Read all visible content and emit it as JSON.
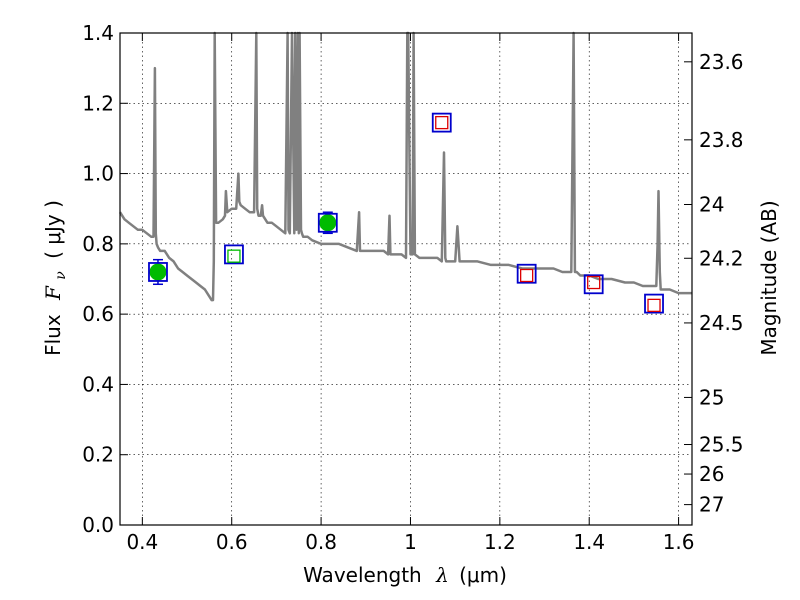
{
  "chart_data": {
    "type": "scatter",
    "xlabel": "Wavelength",
    "xlabel_symbol": "λ",
    "xlabel_unit": "(μm)",
    "ylabel": "Flux",
    "ylabel_symbol": "F",
    "ylabel_subscript": "ν",
    "ylabel_unit": "( μJy )",
    "y2label": "Magnitude (AB)",
    "xlim": [
      0.35,
      1.63
    ],
    "ylim": [
      0.0,
      1.4
    ],
    "grid": true,
    "x_ticks": [
      0.4,
      0.6,
      0.8,
      1.0,
      1.2,
      1.4,
      1.6
    ],
    "x_tick_labels": [
      "0.4",
      "0.6",
      "0.8",
      "1",
      "1.2",
      "1.4",
      "1.6"
    ],
    "y_ticks": [
      0.0,
      0.2,
      0.4,
      0.6,
      0.8,
      1.0,
      1.2,
      1.4
    ],
    "y_tick_labels": [
      "0.0",
      "0.2",
      "0.4",
      "0.6",
      "0.8",
      "1.0",
      "1.2",
      "1.4"
    ],
    "y2_ticks": [
      {
        "label": "23.6",
        "flux": 1.318
      },
      {
        "label": "23.8",
        "flux": 1.096
      },
      {
        "label": "24",
        "flux": 0.912
      },
      {
        "label": "24.2",
        "flux": 0.759
      },
      {
        "label": "24.5",
        "flux": 0.575
      },
      {
        "label": "25",
        "flux": 0.363
      },
      {
        "label": "25.5",
        "flux": 0.229
      },
      {
        "label": "26",
        "flux": 0.145
      },
      {
        "label": "27",
        "flux": 0.058
      }
    ],
    "series": [
      {
        "type": "line",
        "color": "#808080",
        "x": [
          0.35,
          0.36,
          0.37,
          0.38,
          0.39,
          0.4,
          0.41,
          0.42,
          0.425,
          0.428,
          0.43,
          0.432,
          0.435,
          0.44,
          0.45,
          0.46,
          0.47,
          0.48,
          0.49,
          0.5,
          0.51,
          0.52,
          0.53,
          0.54,
          0.55,
          0.555,
          0.558,
          0.56,
          0.562,
          0.565,
          0.57,
          0.58,
          0.585,
          0.587,
          0.59,
          0.6,
          0.61,
          0.615,
          0.617,
          0.62,
          0.63,
          0.64,
          0.65,
          0.655,
          0.657,
          0.66,
          0.665,
          0.668,
          0.67,
          0.68,
          0.69,
          0.7,
          0.72,
          0.725,
          0.727,
          0.73,
          0.735,
          0.74,
          0.742,
          0.745,
          0.748,
          0.75,
          0.752,
          0.755,
          0.757,
          0.76,
          0.77,
          0.78,
          0.8,
          0.82,
          0.84,
          0.86,
          0.88,
          0.885,
          0.887,
          0.89,
          0.9,
          0.92,
          0.94,
          0.95,
          0.953,
          0.955,
          0.96,
          0.97,
          0.98,
          0.99,
          0.993,
          0.995,
          1.0,
          1.005,
          1.007,
          1.01,
          1.02,
          1.03,
          1.04,
          1.05,
          1.06,
          1.07,
          1.075,
          1.078,
          1.08,
          1.09,
          1.1,
          1.105,
          1.11,
          1.12,
          1.15,
          1.18,
          1.2,
          1.22,
          1.25,
          1.28,
          1.3,
          1.32,
          1.34,
          1.36,
          1.365,
          1.368,
          1.372,
          1.38,
          1.4,
          1.42,
          1.45,
          1.48,
          1.5,
          1.52,
          1.54,
          1.55,
          1.553,
          1.555,
          1.558,
          1.56,
          1.58,
          1.6,
          1.62,
          1.63
        ],
        "values": [
          0.89,
          0.87,
          0.86,
          0.85,
          0.84,
          0.84,
          0.83,
          0.82,
          0.82,
          1.3,
          0.83,
          0.8,
          0.79,
          0.78,
          0.78,
          0.76,
          0.75,
          0.73,
          0.72,
          0.71,
          0.7,
          0.69,
          0.68,
          0.67,
          0.65,
          0.64,
          0.64,
          0.75,
          1.42,
          0.86,
          0.86,
          0.87,
          0.88,
          0.95,
          0.89,
          0.9,
          0.9,
          1.0,
          0.92,
          0.91,
          0.9,
          0.89,
          0.89,
          1.42,
          0.9,
          0.88,
          0.88,
          0.91,
          0.88,
          0.86,
          0.86,
          0.85,
          0.83,
          1.42,
          0.84,
          0.83,
          1.42,
          0.83,
          1.42,
          0.84,
          1.42,
          0.83,
          1.42,
          0.84,
          0.83,
          0.82,
          0.82,
          0.81,
          0.8,
          0.8,
          0.8,
          0.79,
          0.78,
          0.89,
          0.78,
          0.78,
          0.78,
          0.78,
          0.78,
          0.77,
          0.88,
          0.77,
          0.77,
          0.77,
          0.77,
          0.76,
          1.42,
          1.42,
          0.77,
          0.77,
          1.42,
          0.77,
          0.76,
          0.76,
          0.76,
          0.76,
          0.76,
          0.75,
          1.06,
          0.76,
          0.75,
          0.75,
          0.75,
          0.85,
          0.75,
          0.75,
          0.75,
          0.74,
          0.74,
          0.74,
          0.73,
          0.73,
          0.73,
          0.73,
          0.72,
          0.72,
          1.42,
          0.72,
          0.72,
          0.71,
          0.71,
          0.7,
          0.7,
          0.69,
          0.69,
          0.68,
          0.68,
          0.68,
          0.8,
          0.95,
          0.72,
          0.67,
          0.67,
          0.66,
          0.66,
          0.66
        ]
      },
      {
        "type": "points",
        "marker": "circle",
        "color": "#00bb00",
        "error_color": "#0000cc",
        "x": [
          0.435,
          0.815
        ],
        "values": [
          0.72,
          0.86
        ],
        "errors": [
          0.035,
          0.03
        ]
      },
      {
        "type": "points",
        "marker": "square-blue",
        "color": "#0000cc",
        "x": [
          0.435,
          0.605,
          0.815,
          1.07,
          1.26,
          1.41,
          1.545
        ],
        "values": [
          0.72,
          0.77,
          0.86,
          1.145,
          0.715,
          0.685,
          0.63
        ]
      },
      {
        "type": "points",
        "marker": "square-inner",
        "x": [
          0.605,
          1.07,
          1.26,
          1.41,
          1.545
        ],
        "values": [
          0.765,
          1.145,
          0.71,
          0.69,
          0.625
        ],
        "colors": [
          "#00bb00",
          "#dd0000",
          "#dd0000",
          "#dd0000",
          "#dd0000"
        ]
      }
    ]
  }
}
